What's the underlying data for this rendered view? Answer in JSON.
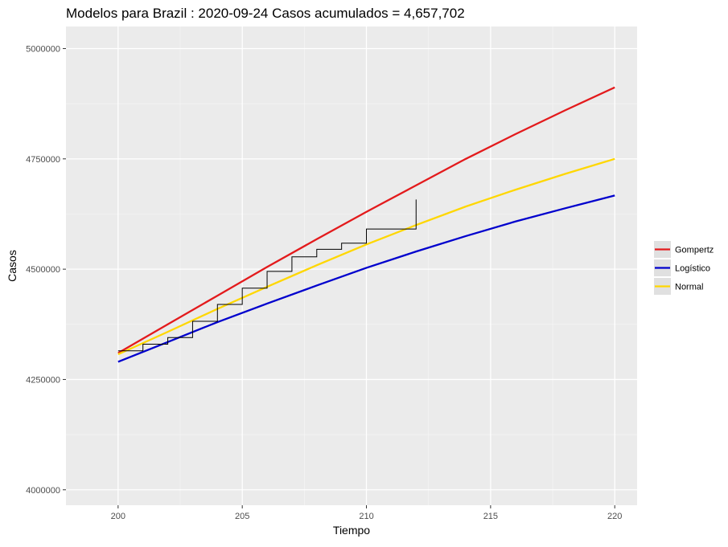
{
  "chart_data": {
    "type": "line",
    "title": "Modelos para Brazil : 2020-09-24 Casos acumulados =  4,657,702",
    "xlabel": "Tiempo",
    "ylabel": "Casos",
    "xlim": [
      197.9,
      220.9
    ],
    "ylim": [
      3965000,
      5050000
    ],
    "x_ticks": [
      200,
      205,
      210,
      215,
      220
    ],
    "y_ticks": [
      4000000,
      4250000,
      4500000,
      4750000,
      5000000
    ],
    "x_tick_labels": [
      "200",
      "205",
      "210",
      "215",
      "220"
    ],
    "y_tick_labels": [
      "4000000",
      "4250000",
      "4500000",
      "4750000",
      "5000000"
    ],
    "grid": true,
    "legend_position": "right",
    "observed": {
      "color": "#000000",
      "points": [
        [
          200,
          4315000
        ],
        [
          201,
          4330000
        ],
        [
          202,
          4345000
        ],
        [
          203,
          4382000
        ],
        [
          204,
          4420000
        ],
        [
          205,
          4457000
        ],
        [
          206,
          4495000
        ],
        [
          207,
          4528000
        ],
        [
          208,
          4545000
        ],
        [
          209,
          4559000
        ],
        [
          210,
          4591000
        ],
        [
          212,
          4592000
        ],
        [
          212,
          4658000
        ]
      ]
    },
    "series": [
      {
        "name": "Gompertz",
        "color": "#e31a1c",
        "x": [
          200,
          202,
          204,
          206,
          208,
          210,
          212,
          214,
          216,
          218,
          220
        ],
        "values": [
          4310000,
          4375000,
          4440000,
          4505000,
          4568000,
          4630000,
          4690000,
          4750000,
          4806000,
          4860000,
          4912000
        ]
      },
      {
        "name": "Logístico",
        "color": "#0000cd",
        "x": [
          200,
          202,
          204,
          206,
          208,
          210,
          212,
          214,
          216,
          218,
          220
        ],
        "values": [
          4290000,
          4335000,
          4380000,
          4422000,
          4463000,
          4503000,
          4540000,
          4575000,
          4608000,
          4638000,
          4667000
        ]
      },
      {
        "name": "Normal",
        "color": "#ffd700",
        "x": [
          200,
          202,
          204,
          206,
          208,
          210,
          212,
          214,
          216,
          218,
          220
        ],
        "values": [
          4307000,
          4358000,
          4410000,
          4460000,
          4509000,
          4556000,
          4600000,
          4642000,
          4680000,
          4716000,
          4750000
        ]
      }
    ]
  }
}
